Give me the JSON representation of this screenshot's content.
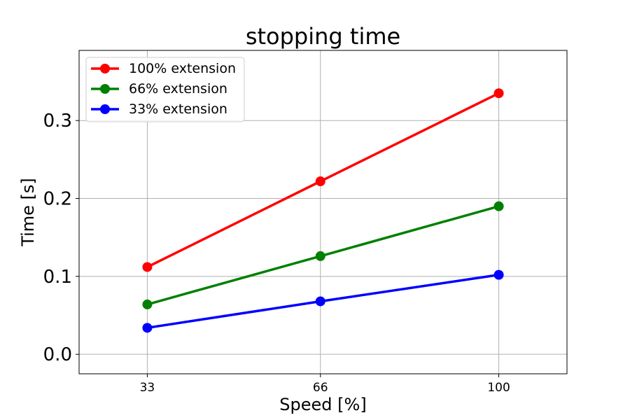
{
  "chart_data": {
    "type": "line",
    "title": "stopping time",
    "xlabel": "Speed [%]",
    "ylabel": "Time [s]",
    "x_ticks": [
      33,
      66,
      100
    ],
    "y_ticks": [
      0.0,
      0.1,
      0.2,
      0.3
    ],
    "y_tick_labels": [
      "0.0",
      "0.1",
      "0.2",
      "0.3"
    ],
    "x_tick_labels": [
      "33",
      "66",
      "100"
    ],
    "xlim": [
      20,
      113
    ],
    "ylim": [
      -0.025,
      0.39
    ],
    "grid": true,
    "legend_position": "top-left",
    "x": [
      33,
      66,
      100
    ],
    "series": [
      {
        "name": "100% extension",
        "color": "#ff0000",
        "values": [
          0.112,
          0.222,
          0.335
        ]
      },
      {
        "name": "66% extension",
        "color": "#008000",
        "values": [
          0.064,
          0.126,
          0.19
        ]
      },
      {
        "name": "33% extension",
        "color": "#0000ff",
        "values": [
          0.034,
          0.068,
          0.102
        ]
      }
    ]
  }
}
